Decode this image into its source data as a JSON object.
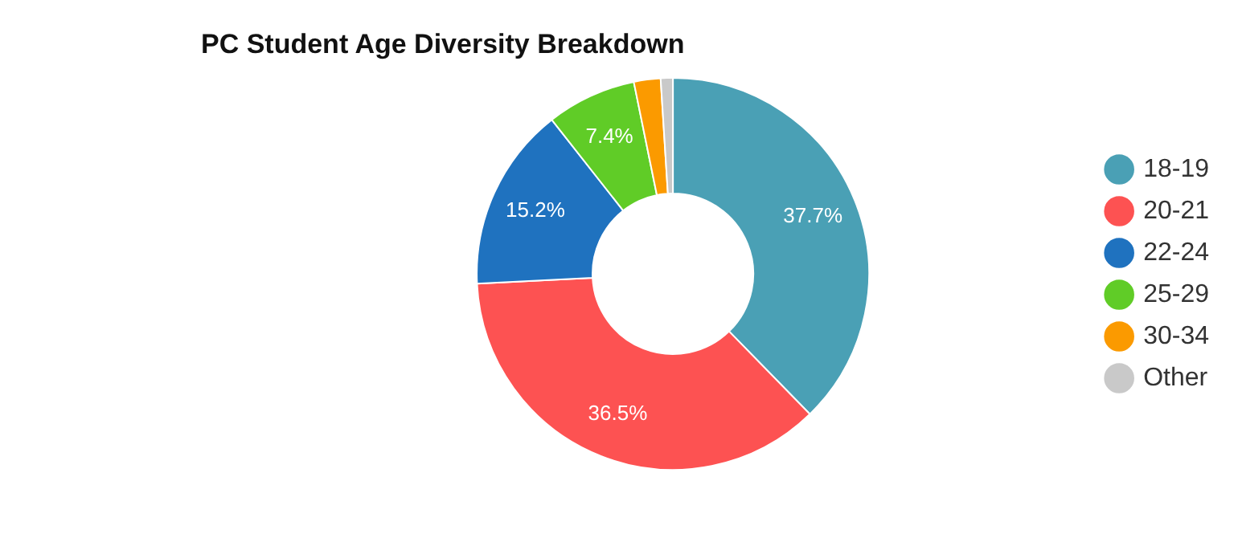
{
  "chart_data": {
    "type": "donut",
    "title": "PC Student Age Diversity Breakdown",
    "categories": [
      "18-19",
      "20-21",
      "22-24",
      "25-29",
      "30-34",
      "Other"
    ],
    "values": [
      37.7,
      36.5,
      15.2,
      7.4,
      2.2,
      1.0
    ],
    "colors": [
      "#4aa0b5",
      "#fd5252",
      "#1f72bf",
      "#60cc27",
      "#fb9a00",
      "#c9c9c9"
    ],
    "value_labels": [
      "37.7%",
      "36.5%",
      "15.2%",
      "7.4%",
      null,
      null
    ],
    "legend": "right"
  }
}
